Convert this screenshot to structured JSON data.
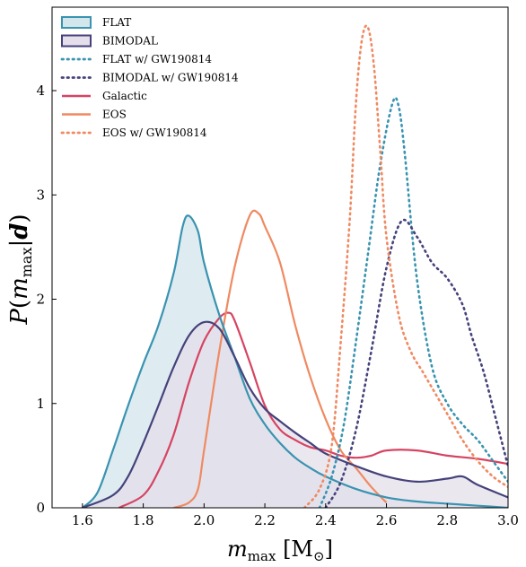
{
  "chart_data": {
    "type": "area",
    "xlabel": "m_max [M⊙]",
    "ylabel": "P(m_max | d)",
    "xlim": [
      1.5,
      3.0
    ],
    "ylim": [
      0,
      4.8
    ],
    "xticks": [
      "1.6",
      "1.8",
      "2.0",
      "2.2",
      "2.4",
      "2.6",
      "2.8",
      "3.0"
    ],
    "yticks": [
      "0",
      "1",
      "2",
      "3",
      "4"
    ],
    "grid": false,
    "legend_position": "top-left",
    "series": [
      {
        "name": "FLAT",
        "style": "filled",
        "color": "#3a93b0",
        "fill": "#d3e6ec",
        "x": [
          1.6,
          1.65,
          1.7,
          1.75,
          1.8,
          1.85,
          1.9,
          1.93,
          1.95,
          1.98,
          2.0,
          2.05,
          2.1,
          2.15,
          2.2,
          2.25,
          2.3,
          2.35,
          2.4,
          2.5,
          2.6,
          2.7,
          2.8,
          2.9,
          3.0
        ],
        "y": [
          0.0,
          0.15,
          0.55,
          0.98,
          1.38,
          1.75,
          2.25,
          2.7,
          2.8,
          2.65,
          2.35,
          1.85,
          1.45,
          1.05,
          0.8,
          0.62,
          0.48,
          0.38,
          0.3,
          0.18,
          0.1,
          0.06,
          0.04,
          0.02,
          0.0
        ]
      },
      {
        "name": "BIMODAL",
        "style": "filled",
        "color": "#45427b",
        "fill": "#e4dfea",
        "x": [
          1.6,
          1.7,
          1.75,
          1.8,
          1.85,
          1.9,
          1.95,
          2.0,
          2.05,
          2.1,
          2.15,
          2.2,
          2.25,
          2.3,
          2.35,
          2.4,
          2.5,
          2.6,
          2.7,
          2.8,
          2.85,
          2.9,
          3.0
        ],
        "y": [
          0.0,
          0.12,
          0.3,
          0.62,
          0.98,
          1.35,
          1.65,
          1.78,
          1.72,
          1.45,
          1.15,
          0.95,
          0.83,
          0.72,
          0.62,
          0.52,
          0.4,
          0.3,
          0.25,
          0.28,
          0.3,
          0.22,
          0.1
        ]
      },
      {
        "name": "FLAT w/ GW190814",
        "style": "dotted",
        "color": "#3a93b0",
        "x": [
          2.38,
          2.42,
          2.46,
          2.5,
          2.54,
          2.58,
          2.62,
          2.64,
          2.66,
          2.7,
          2.75,
          2.8,
          2.85,
          2.9,
          2.95,
          3.0
        ],
        "y": [
          0.0,
          0.3,
          0.8,
          1.6,
          2.45,
          3.3,
          3.88,
          3.85,
          3.4,
          2.2,
          1.35,
          1.0,
          0.8,
          0.65,
          0.45,
          0.25
        ]
      },
      {
        "name": "BIMODAL w/ GW190814",
        "style": "dotted",
        "color": "#45427b",
        "x": [
          2.4,
          2.45,
          2.5,
          2.55,
          2.6,
          2.65,
          2.7,
          2.75,
          2.8,
          2.85,
          2.88,
          2.92,
          2.96,
          3.0
        ],
        "y": [
          0.0,
          0.25,
          0.75,
          1.5,
          2.3,
          2.75,
          2.6,
          2.35,
          2.2,
          1.95,
          1.65,
          1.3,
          0.85,
          0.4
        ]
      },
      {
        "name": "Galactic",
        "style": "solid",
        "color": "#d64462",
        "x": [
          1.72,
          1.8,
          1.85,
          1.9,
          1.95,
          2.0,
          2.05,
          2.08,
          2.1,
          2.15,
          2.2,
          2.25,
          2.3,
          2.35,
          2.4,
          2.45,
          2.5,
          2.55,
          2.6,
          2.7,
          2.8,
          2.9,
          3.0
        ],
        "y": [
          0.0,
          0.12,
          0.35,
          0.7,
          1.2,
          1.6,
          1.82,
          1.87,
          1.8,
          1.4,
          0.98,
          0.75,
          0.65,
          0.58,
          0.55,
          0.5,
          0.48,
          0.5,
          0.55,
          0.55,
          0.5,
          0.47,
          0.42
        ]
      },
      {
        "name": "EOS",
        "style": "solid",
        "color": "#ef8a62",
        "x": [
          1.9,
          1.95,
          1.98,
          2.0,
          2.05,
          2.1,
          2.15,
          2.18,
          2.2,
          2.25,
          2.3,
          2.35,
          2.4,
          2.45,
          2.5,
          2.55,
          2.6
        ],
        "y": [
          0.0,
          0.05,
          0.18,
          0.55,
          1.5,
          2.3,
          2.8,
          2.82,
          2.7,
          2.35,
          1.75,
          1.25,
          0.85,
          0.55,
          0.38,
          0.2,
          0.05
        ]
      },
      {
        "name": "EOS w/ GW190814",
        "style": "dotted",
        "color": "#ef8a62",
        "x": [
          2.33,
          2.38,
          2.42,
          2.45,
          2.48,
          2.5,
          2.52,
          2.54,
          2.56,
          2.58,
          2.6,
          2.64,
          2.68,
          2.72,
          2.76,
          2.8,
          2.85,
          2.9,
          2.95,
          3.0
        ],
        "y": [
          0.0,
          0.18,
          0.6,
          1.6,
          2.8,
          3.9,
          4.5,
          4.6,
          4.2,
          3.4,
          2.6,
          1.85,
          1.5,
          1.3,
          1.1,
          0.9,
          0.65,
          0.45,
          0.3,
          0.2
        ]
      }
    ]
  }
}
